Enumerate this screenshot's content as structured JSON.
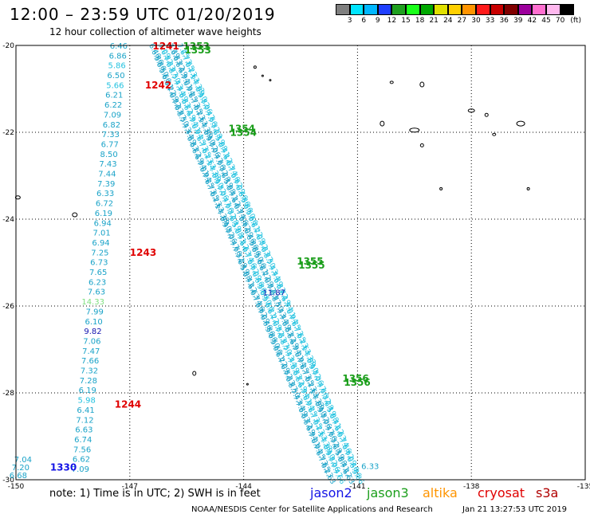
{
  "title": "12:00 – 23:59 UTC 01/20/2019",
  "subtitle": "12 hour collection of altimeter wave heights",
  "color_scale": {
    "labels": [
      "3",
      "6",
      "9",
      "12",
      "15",
      "18",
      "21",
      "24",
      "27",
      "30",
      "33",
      "36",
      "39",
      "42",
      "45",
      "70",
      "(ft)"
    ],
    "colors": [
      "#7f7f7f",
      "#00e5ff",
      "#00b7ff",
      "#1f3fff",
      "#1f9f1f",
      "#19ff19",
      "#00a800",
      "#e0e000",
      "#ffd000",
      "#ff9400",
      "#ff1a1a",
      "#c80000",
      "#800000",
      "#9c009c",
      "#ff6fd0",
      "#ffb8ee",
      "#000000"
    ]
  },
  "note": "note:  1) Time is in UTC;  2) SWH is in feet",
  "satellites": [
    {
      "name": "jason2",
      "color": "#1414e6"
    },
    {
      "name": "jason3",
      "color": "#1b9e1b"
    },
    {
      "name": "altika",
      "color": "#ff9500"
    },
    {
      "name": "cryosat",
      "color": "#e00000"
    },
    {
      "name": "s3a",
      "color": "#b00000"
    }
  ],
  "footer_left": "NOAA/NESDIS Center for Satellite Applications and Research",
  "footer_right": "Jan 21 13:27:53 UTC 2019",
  "map": {
    "lat_labels": [
      "-20",
      "-22",
      "-24",
      "-26",
      "-28",
      "-30"
    ],
    "lon_labels": [
      "-150",
      "-147",
      "-144",
      "-141",
      "-138",
      "-135"
    ],
    "lon_range": [
      -150,
      -135
    ],
    "lat_range": [
      -20,
      -30
    ]
  },
  "pass_labels": [
    {
      "text": "1241",
      "color": "#e00000",
      "lon": -146.4,
      "lat": -20.0
    },
    {
      "text": "1242",
      "color": "#e00000",
      "lon": -146.6,
      "lat": -20.9
    },
    {
      "text": "1243",
      "color": "#e00000",
      "lon": -147.0,
      "lat": -24.75
    },
    {
      "text": "1244",
      "color": "#e00000",
      "lon": -147.4,
      "lat": -28.25
    },
    {
      "text": "1353",
      "color": "#1b9e1b",
      "lon": -145.6,
      "lat": -20.0
    },
    {
      "text": "1354",
      "color": "#1b9e1b",
      "lon": -144.4,
      "lat": -21.9
    },
    {
      "text": "1355",
      "color": "#1b9e1b",
      "lon": -142.6,
      "lat": -24.95
    },
    {
      "text": "1356",
      "color": "#1b9e1b",
      "lon": -141.4,
      "lat": -27.65
    },
    {
      "text": "1330",
      "color": "#1414e6",
      "lon": -149.1,
      "lat": -29.7
    }
  ],
  "swh_column": [
    {
      "text": "6.46",
      "color": "#1aa3c8"
    },
    {
      "text": "6.86",
      "color": "#1aa3c8"
    },
    {
      "text": "5.86",
      "color": "#22c2e0"
    },
    {
      "text": "6.50",
      "color": "#1aa3c8"
    },
    {
      "text": "5.66",
      "color": "#22c2e0"
    },
    {
      "text": "6.21",
      "color": "#1aa3c8"
    },
    {
      "text": "6.22",
      "color": "#1aa3c8"
    },
    {
      "text": "7.09",
      "color": "#1aa3c8"
    },
    {
      "text": "6.82",
      "color": "#1aa3c8"
    },
    {
      "text": "7.33",
      "color": "#1aa3c8"
    },
    {
      "text": "6.77",
      "color": "#1aa3c8"
    },
    {
      "text": "8.50",
      "color": "#1aa3c8"
    },
    {
      "text": "7.43",
      "color": "#1aa3c8"
    },
    {
      "text": "7.44",
      "color": "#1aa3c8"
    },
    {
      "text": "7.39",
      "color": "#1aa3c8"
    },
    {
      "text": "6.33",
      "color": "#1aa3c8"
    },
    {
      "text": "6.72",
      "color": "#1aa3c8"
    },
    {
      "text": "6.19",
      "color": "#1aa3c8"
    },
    {
      "text": "6.94",
      "color": "#1aa3c8"
    },
    {
      "text": "7.01",
      "color": "#1aa3c8"
    },
    {
      "text": "6.94",
      "color": "#1aa3c8"
    },
    {
      "text": "7.25",
      "color": "#1aa3c8"
    },
    {
      "text": "6.73",
      "color": "#1aa3c8"
    },
    {
      "text": "7.65",
      "color": "#1aa3c8"
    },
    {
      "text": "6.23",
      "color": "#1aa3c8"
    },
    {
      "text": "7.63",
      "color": "#1aa3c8"
    },
    {
      "text": "14.33",
      "color": "#7fe07f"
    },
    {
      "text": "7.99",
      "color": "#1aa3c8"
    },
    {
      "text": "6.10",
      "color": "#1aa3c8"
    },
    {
      "text": "9.82",
      "color": "#1414b0"
    },
    {
      "text": "7.06",
      "color": "#1aa3c8"
    },
    {
      "text": "7.47",
      "color": "#1aa3c8"
    },
    {
      "text": "7.66",
      "color": "#1aa3c8"
    },
    {
      "text": "7.32",
      "color": "#1aa3c8"
    },
    {
      "text": "7.28",
      "color": "#1aa3c8"
    },
    {
      "text": "6.19",
      "color": "#1aa3c8"
    },
    {
      "text": "5.98",
      "color": "#22c2e0"
    },
    {
      "text": "6.41",
      "color": "#1aa3c8"
    },
    {
      "text": "7.12",
      "color": "#1aa3c8"
    },
    {
      "text": "6.63",
      "color": "#1aa3c8"
    },
    {
      "text": "6.74",
      "color": "#1aa3c8"
    },
    {
      "text": "7.56",
      "color": "#1aa3c8"
    },
    {
      "text": "6.62",
      "color": "#1aa3c8"
    },
    {
      "text": "7.09",
      "color": "#1aa3c8"
    }
  ],
  "swh_bottom_left": [
    {
      "text": "7.04",
      "color": "#1aa3c8"
    },
    {
      "text": "7.20",
      "color": "#1aa3c8"
    },
    {
      "text": "6.68",
      "color": "#1aa3c8"
    }
  ],
  "track_highlight": {
    "text": "11.87",
    "color": "#1414b0",
    "lon": -143.5,
    "lat": -25.75
  },
  "track_bottom_value": {
    "text": "6.33",
    "color": "#1aa3c8",
    "lon": -140.9,
    "lat": -29.75
  }
}
